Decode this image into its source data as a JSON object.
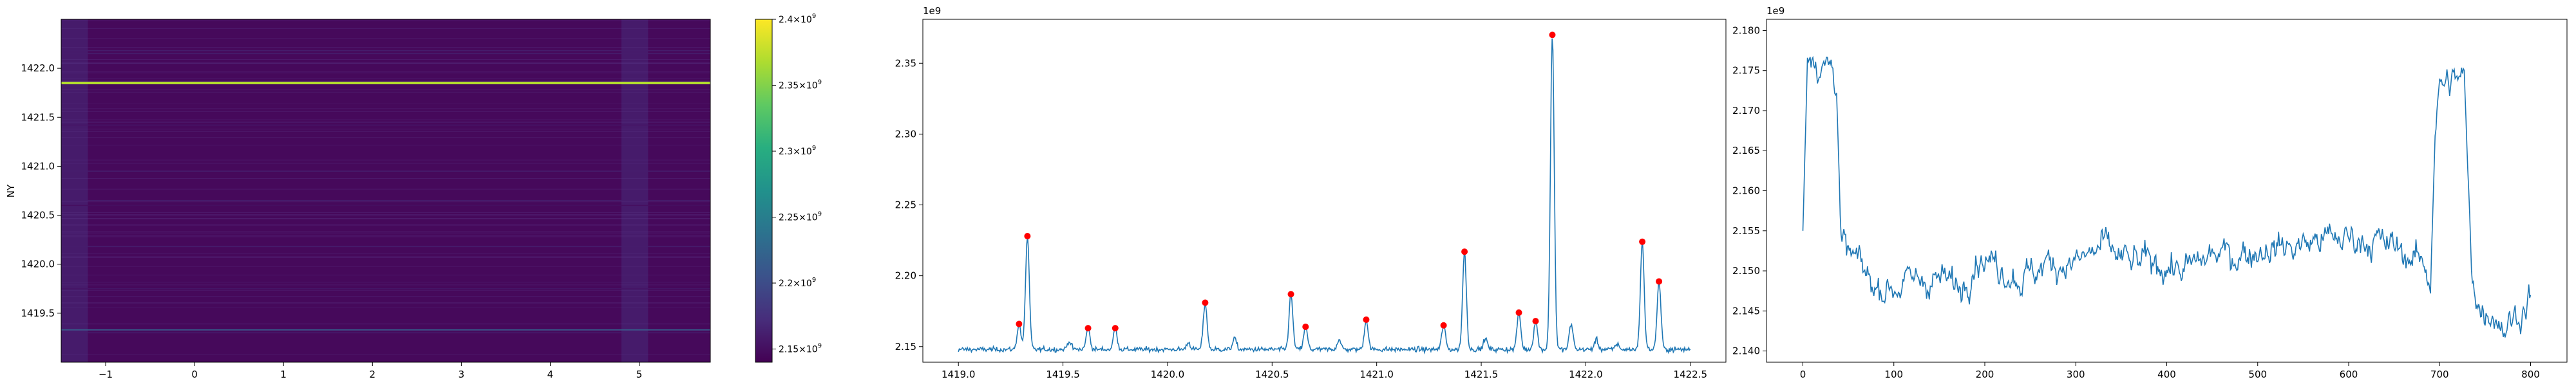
{
  "chart_data": [
    {
      "type": "heatmap",
      "xlabel": "",
      "ylabel": "NY",
      "xticks": [
        -1,
        0,
        1,
        2,
        3,
        4,
        5
      ],
      "yticks": [
        1419.5,
        1420.0,
        1420.5,
        1421.0,
        1421.5,
        1422.0
      ],
      "xlim": [
        -1.5,
        5.8
      ],
      "ylim": [
        1419.0,
        1422.5
      ],
      "colormap": "viridis",
      "colorbar": {
        "range": [
          2140000000.0,
          2400000000.0
        ],
        "ticks": [
          2150000000.0,
          2200000000.0,
          2250000000.0,
          2300000000.0,
          2350000000.0,
          2400000000.0
        ],
        "tick_labels": [
          {
            "mant": "2.15",
            "exp": "9"
          },
          {
            "mant": "2.2",
            "exp": "9"
          },
          {
            "mant": "2.25",
            "exp": "9"
          },
          {
            "mant": "2.3",
            "exp": "9"
          },
          {
            "mant": "2.35",
            "exp": "9"
          },
          {
            "mant": "2.4",
            "exp": "9"
          }
        ]
      },
      "bright_rows": [
        {
          "y": 1422.18,
          "value": 2160000000.0
        },
        {
          "y": 1422.15,
          "value": 2160000000.0
        },
        {
          "y": 1421.85,
          "value": 2370000000.0
        },
        {
          "y": 1421.42,
          "value": 2155000000.0
        },
        {
          "y": 1420.95,
          "value": 2160000000.0
        },
        {
          "y": 1420.65,
          "value": 2160000000.0
        },
        {
          "y": 1420.6,
          "value": 2150000000.0
        },
        {
          "y": 1420.18,
          "value": 2160000000.0
        },
        {
          "y": 1419.75,
          "value": 2155000000.0
        },
        {
          "y": 1419.33,
          "value": 2220000000.0
        },
        {
          "y": 1419.3,
          "value": 2160000000.0
        }
      ],
      "bright_columns": [
        {
          "x_range": [
            -1.5,
            -1.2
          ],
          "value": 2170000000.0
        },
        {
          "x_range": [
            4.8,
            5.1
          ],
          "value": 2170000000.0
        }
      ]
    },
    {
      "type": "line",
      "exponent_label": "1e9",
      "xticks": [
        1419.0,
        1419.5,
        1420.0,
        1420.5,
        1421.0,
        1421.5,
        1422.0,
        1422.5
      ],
      "xtick_labels": [
        "1419.0",
        "1419.5",
        "1420.0",
        "1420.5",
        "1421.0",
        "1421.5",
        "1422.0",
        "1422.5"
      ],
      "yticks": [
        2.15,
        2.2,
        2.25,
        2.3,
        2.35
      ],
      "ytick_labels": [
        "2.15",
        "2.20",
        "2.25",
        "2.30",
        "2.35"
      ],
      "xlim": [
        1418.83,
        1422.67
      ],
      "ylim": [
        2.139,
        2.381
      ],
      "baseline": 2.148,
      "peaks": [
        {
          "x": 1419.29,
          "y": 2.166
        },
        {
          "x": 1419.33,
          "y": 2.228
        },
        {
          "x": 1419.62,
          "y": 2.163
        },
        {
          "x": 1419.75,
          "y": 2.163
        },
        {
          "x": 1420.18,
          "y": 2.181
        },
        {
          "x": 1420.59,
          "y": 2.187
        },
        {
          "x": 1420.66,
          "y": 2.164
        },
        {
          "x": 1420.95,
          "y": 2.169
        },
        {
          "x": 1421.32,
          "y": 2.165
        },
        {
          "x": 1421.42,
          "y": 2.217
        },
        {
          "x": 1421.68,
          "y": 2.174
        },
        {
          "x": 1421.76,
          "y": 2.168
        },
        {
          "x": 1421.84,
          "y": 2.37
        },
        {
          "x": 1422.27,
          "y": 2.224
        },
        {
          "x": 1422.35,
          "y": 2.196
        }
      ],
      "minor_bumps": [
        {
          "x": 1419.53,
          "y": 2.154
        },
        {
          "x": 1420.1,
          "y": 2.153
        },
        {
          "x": 1420.32,
          "y": 2.156
        },
        {
          "x": 1420.82,
          "y": 2.155
        },
        {
          "x": 1421.52,
          "y": 2.156
        },
        {
          "x": 1421.93,
          "y": 2.166
        },
        {
          "x": 1422.05,
          "y": 2.155
        },
        {
          "x": 1422.15,
          "y": 2.152
        }
      ],
      "x_range": [
        1419.0,
        1422.5
      ],
      "line_color": "#1f77b4",
      "marker_color": "#ff0000"
    },
    {
      "type": "line",
      "exponent_label": "1e9",
      "xticks": [
        0,
        100,
        200,
        300,
        400,
        500,
        600,
        700,
        800
      ],
      "xtick_labels": [
        "0",
        "100",
        "200",
        "300",
        "400",
        "500",
        "600",
        "700",
        "800"
      ],
      "yticks": [
        2.14,
        2.145,
        2.15,
        2.155,
        2.16,
        2.165,
        2.17,
        2.175,
        2.18
      ],
      "ytick_labels": [
        "2.140",
        "2.145",
        "2.150",
        "2.155",
        "2.160",
        "2.165",
        "2.170",
        "2.175",
        "2.180"
      ],
      "xlim": [
        -40,
        840
      ],
      "ylim": [
        2.1386,
        2.1814
      ],
      "trend": [
        [
          0,
          2.155
        ],
        [
          2,
          2.165
        ],
        [
          5,
          2.177
        ],
        [
          10,
          2.178
        ],
        [
          20,
          2.175
        ],
        [
          30,
          2.176
        ],
        [
          37,
          2.174
        ],
        [
          42,
          2.153
        ],
        [
          60,
          2.151
        ],
        [
          80,
          2.148
        ],
        [
          100,
          2.148
        ],
        [
          130,
          2.149
        ],
        [
          150,
          2.149
        ],
        [
          175,
          2.148
        ],
        [
          190,
          2.152
        ],
        [
          210,
          2.151
        ],
        [
          240,
          2.149
        ],
        [
          270,
          2.151
        ],
        [
          300,
          2.151
        ],
        [
          330,
          2.153
        ],
        [
          360,
          2.151
        ],
        [
          390,
          2.151
        ],
        [
          420,
          2.15
        ],
        [
          450,
          2.152
        ],
        [
          480,
          2.152
        ],
        [
          510,
          2.153
        ],
        [
          540,
          2.153
        ],
        [
          570,
          2.154
        ],
        [
          600,
          2.154
        ],
        [
          620,
          2.154
        ],
        [
          650,
          2.153
        ],
        [
          680,
          2.151
        ],
        [
          690,
          2.149
        ],
        [
          695,
          2.168
        ],
        [
          700,
          2.173
        ],
        [
          720,
          2.174
        ],
        [
          727,
          2.174
        ],
        [
          735,
          2.15
        ],
        [
          745,
          2.145
        ],
        [
          760,
          2.145
        ],
        [
          770,
          2.143
        ],
        [
          780,
          2.144
        ],
        [
          790,
          2.145
        ],
        [
          800,
          2.147
        ]
      ],
      "line_color": "#1f77b4"
    }
  ]
}
